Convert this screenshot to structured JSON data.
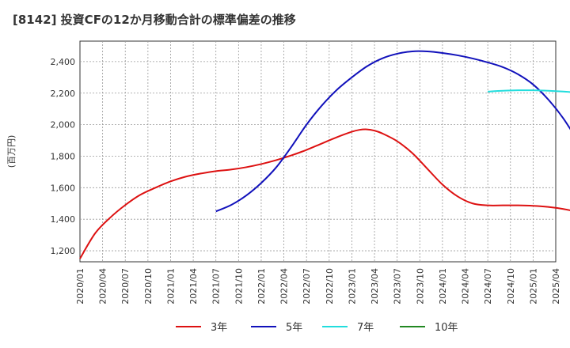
{
  "chart_data": {
    "type": "line",
    "title": "[8142]  投資CFの12か月移動合計の標準偏差の推移",
    "ylabel": "(百万円)",
    "xlabel": "",
    "ylim": [
      1130,
      2530
    ],
    "yticks": [
      1200,
      1400,
      1600,
      1800,
      2000,
      2200,
      2400
    ],
    "ytick_labels": [
      "1,200",
      "1,400",
      "1,600",
      "1,800",
      "2,000",
      "2,200",
      "2,400"
    ],
    "xticks": [
      "2020/01",
      "2020/04",
      "2020/07",
      "2020/10",
      "2021/01",
      "2021/04",
      "2021/07",
      "2021/10",
      "2022/01",
      "2022/04",
      "2022/07",
      "2022/10",
      "2023/01",
      "2023/04",
      "2023/07",
      "2023/10",
      "2024/01",
      "2024/04",
      "2024/07",
      "2024/10",
      "2025/01",
      "2025/04"
    ],
    "x_start": "2020/01",
    "grid": true,
    "legend_position": "bottom",
    "series": [
      {
        "name": "3年",
        "color": "#dd1111",
        "points": [
          [
            0,
            1150
          ],
          [
            2,
            1310
          ],
          [
            4,
            1410
          ],
          [
            6,
            1490
          ],
          [
            8,
            1555
          ],
          [
            10,
            1600
          ],
          [
            12,
            1640
          ],
          [
            14,
            1670
          ],
          [
            16,
            1690
          ],
          [
            18,
            1705
          ],
          [
            20,
            1715
          ],
          [
            22,
            1730
          ],
          [
            24,
            1750
          ],
          [
            26,
            1775
          ],
          [
            28,
            1805
          ],
          [
            30,
            1840
          ],
          [
            32,
            1880
          ],
          [
            34,
            1920
          ],
          [
            36,
            1955
          ],
          [
            37,
            1967
          ],
          [
            38,
            1970
          ],
          [
            39,
            1962
          ],
          [
            40,
            1945
          ],
          [
            42,
            1895
          ],
          [
            44,
            1820
          ],
          [
            46,
            1720
          ],
          [
            48,
            1620
          ],
          [
            50,
            1545
          ],
          [
            52,
            1500
          ],
          [
            54,
            1488
          ],
          [
            56,
            1488
          ],
          [
            58,
            1488
          ],
          [
            60,
            1485
          ],
          [
            62,
            1478
          ],
          [
            64,
            1465
          ],
          [
            66,
            1445
          ],
          [
            68,
            1420
          ],
          [
            70,
            1390
          ],
          [
            72,
            1350
          ],
          [
            74,
            1300
          ],
          [
            76,
            1250
          ],
          [
            78,
            1220
          ],
          [
            80,
            1210
          ],
          [
            82,
            1212
          ],
          [
            84,
            1225
          ],
          [
            86,
            1245
          ],
          [
            88,
            1265
          ],
          [
            89,
            1268
          ],
          [
            90,
            1262
          ],
          [
            91,
            1240
          ],
          [
            92,
            1210
          ]
        ]
      },
      {
        "name": "5年",
        "color": "#1111bb",
        "points": [
          [
            18,
            1450
          ],
          [
            20,
            1490
          ],
          [
            22,
            1550
          ],
          [
            24,
            1630
          ],
          [
            26,
            1730
          ],
          [
            28,
            1860
          ],
          [
            30,
            2000
          ],
          [
            32,
            2120
          ],
          [
            34,
            2220
          ],
          [
            36,
            2300
          ],
          [
            38,
            2370
          ],
          [
            40,
            2420
          ],
          [
            42,
            2450
          ],
          [
            44,
            2465
          ],
          [
            46,
            2465
          ],
          [
            48,
            2455
          ],
          [
            50,
            2440
          ],
          [
            52,
            2420
          ],
          [
            54,
            2395
          ],
          [
            56,
            2365
          ],
          [
            58,
            2320
          ],
          [
            60,
            2255
          ],
          [
            62,
            2160
          ],
          [
            64,
            2040
          ],
          [
            66,
            1890
          ],
          [
            68,
            1740
          ],
          [
            70,
            1590
          ],
          [
            72,
            1450
          ],
          [
            74,
            1340
          ],
          [
            76,
            1275
          ],
          [
            78,
            1242
          ],
          [
            80,
            1235
          ],
          [
            82,
            1242
          ],
          [
            84,
            1255
          ]
        ]
      },
      {
        "name": "7年",
        "color": "#22dddd",
        "points": [
          [
            54,
            2210
          ],
          [
            56,
            2215
          ],
          [
            58,
            2218
          ],
          [
            60,
            2218
          ],
          [
            62,
            2215
          ],
          [
            64,
            2210
          ],
          [
            66,
            2203
          ],
          [
            68,
            2195
          ],
          [
            70,
            2187
          ],
          [
            72,
            2178
          ],
          [
            74,
            2168
          ],
          [
            76,
            2155
          ],
          [
            78,
            2140
          ],
          [
            80,
            2125
          ],
          [
            82,
            2108
          ]
        ]
      },
      {
        "name": "10年",
        "color": "#228822",
        "points": []
      }
    ]
  }
}
